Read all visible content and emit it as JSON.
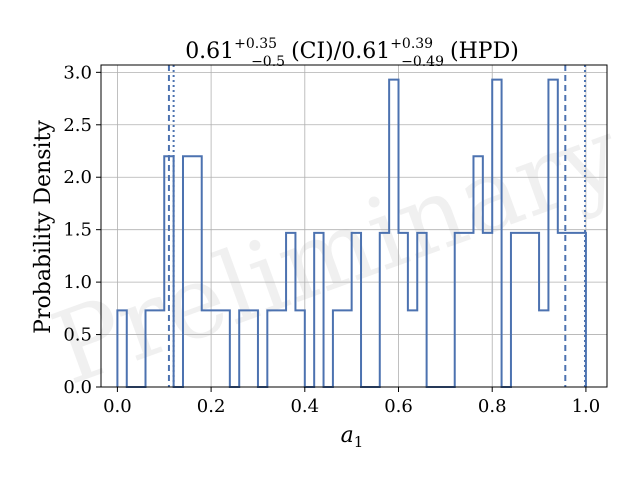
{
  "chart_data": {
    "type": "histogram-step",
    "title": {
      "ci_value": "0.61",
      "ci_upper": "+0.35",
      "ci_lower": "−0.5",
      "ci_label": "(CI)",
      "separator": "/",
      "hpd_value": "0.61",
      "hpd_upper": "+0.39",
      "hpd_lower": "−0.49",
      "hpd_label": "(HPD)"
    },
    "xlabel": "a",
    "xlabel_subscript": "1",
    "ylabel": "Probability Density",
    "watermark": "Preliminary",
    "xlim": [
      -0.035,
      1.045
    ],
    "ylim": [
      0,
      3.07
    ],
    "xticks": [
      0.0,
      0.2,
      0.4,
      0.6,
      0.8,
      1.0
    ],
    "xtick_labels": [
      "0.0",
      "0.2",
      "0.4",
      "0.6",
      "0.8",
      "1.0"
    ],
    "yticks": [
      0.0,
      0.5,
      1.0,
      1.5,
      2.0,
      2.5,
      3.0
    ],
    "ytick_labels": [
      "0.0",
      "0.5",
      "1.0",
      "1.5",
      "2.0",
      "2.5",
      "3.0"
    ],
    "grid": true,
    "bins": {
      "edges": [
        0.0,
        0.02,
        0.04,
        0.06,
        0.08,
        0.1,
        0.12,
        0.14,
        0.16,
        0.18,
        0.2,
        0.22,
        0.24,
        0.26,
        0.28,
        0.3,
        0.32,
        0.34,
        0.36,
        0.38,
        0.4,
        0.42,
        0.44,
        0.46,
        0.48,
        0.5,
        0.52,
        0.54,
        0.56,
        0.58,
        0.6,
        0.62,
        0.64,
        0.66,
        0.68,
        0.7,
        0.72,
        0.74,
        0.76,
        0.78,
        0.8,
        0.82,
        0.84,
        0.86,
        0.88,
        0.9,
        0.92,
        0.94,
        0.96,
        0.98,
        1.0
      ],
      "density": [
        0.73,
        0.0,
        0.0,
        0.73,
        0.73,
        2.2,
        0.0,
        2.2,
        2.2,
        0.73,
        0.73,
        0.73,
        0.0,
        0.73,
        0.73,
        0.0,
        0.73,
        0.73,
        1.47,
        0.73,
        0.0,
        1.47,
        0.0,
        0.73,
        0.73,
        1.47,
        0.0,
        0.0,
        1.47,
        2.93,
        1.47,
        0.73,
        1.47,
        0.0,
        0.0,
        0.0,
        1.47,
        1.47,
        2.2,
        1.47,
        2.93,
        0.0,
        1.47,
        1.47,
        1.47,
        0.73,
        2.93,
        1.47,
        1.47,
        1.47
      ]
    },
    "lines": [
      {
        "kind": "CI",
        "style": "dashed",
        "x": [
          0.11,
          0.956
        ]
      },
      {
        "kind": "HPD",
        "style": "dotted",
        "x": [
          0.12,
          0.998
        ]
      }
    ],
    "colors": {
      "series": "#4c72b0",
      "grid": "#b0b0b0",
      "axis": "#000000"
    }
  }
}
